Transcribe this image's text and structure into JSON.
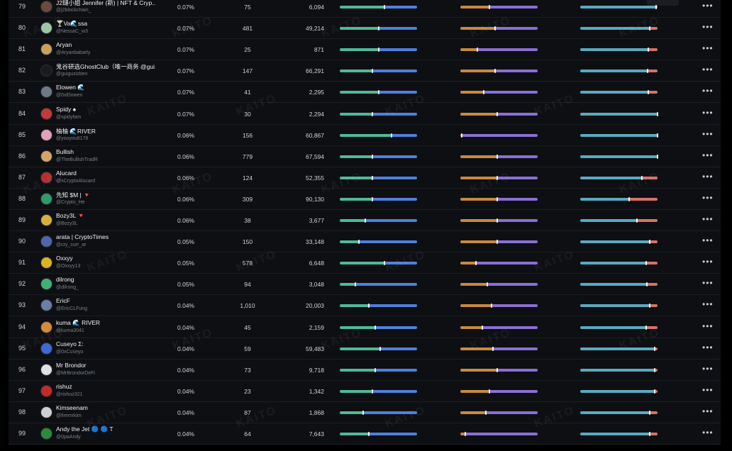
{
  "watermark": "KAITO",
  "more_label": "•••",
  "colors": {
    "green": "#4fb99a",
    "blue": "#4f7fe0",
    "orange": "#c9893c",
    "purple": "#8a6fd6",
    "teal": "#5aa9c2",
    "red": "#d9706a"
  },
  "rows": [
    {
      "rank": "79",
      "name": "J2鏈小姐 Jennifer (新) | NFT & Cryp...",
      "handle": "@j2blockchain_",
      "pct": "0.07%",
      "n1": "75",
      "n2": "6,094",
      "avatar": "#6b4b3e",
      "b1": 0.58,
      "b2": 0.38,
      "b3": 0.98
    },
    {
      "rank": "80",
      "name": "🍸Va🌊ssa",
      "handle": "@NessaC_w3",
      "pct": "0.07%",
      "n1": "481",
      "n2": "49,214",
      "avatar": "#9fc4a8",
      "b1": 0.5,
      "b2": 0.45,
      "b3": 0.9
    },
    {
      "rank": "81",
      "name": "Aryan",
      "handle": "@Aryanbabarly",
      "pct": "0.07%",
      "n1": "25",
      "n2": "871",
      "avatar": "#c9a15a",
      "b1": 0.5,
      "b2": 0.22,
      "b3": 0.88
    },
    {
      "rank": "82",
      "name": "鬼谷研选GhostClub（唯一商务 @gui...",
      "handle": "@guiguzizben",
      "pct": "0.07%",
      "n1": "147",
      "n2": "66,291",
      "avatar": "#1b1b1b",
      "b1": 0.42,
      "b2": 0.45,
      "b3": 0.87
    },
    {
      "rank": "83",
      "name": "Elowen 🌊",
      "handle": "@0xElowen",
      "pct": "0.07%",
      "n1": "41",
      "n2": "2,295",
      "avatar": "#6d7a86",
      "b1": 0.5,
      "b2": 0.3,
      "b3": 0.88
    },
    {
      "rank": "84",
      "name": "Spidy ♠",
      "handle": "@spidyfam",
      "pct": "0.07%",
      "n1": "30",
      "n2": "2,294",
      "avatar": "#c23a3a",
      "b1": 0.42,
      "b2": 0.48,
      "b3": 1.0
    },
    {
      "rank": "85",
      "name": "柚柚 🌊RIVER",
      "handle": "@youyou8178",
      "pct": "0.06%",
      "n1": "156",
      "n2": "60,867",
      "avatar": "#e3a2b6",
      "b1": 0.67,
      "b2": 0.02,
      "b3": 1.0
    },
    {
      "rank": "86",
      "name": "Bullish",
      "handle": "@TheBullishTradR",
      "pct": "0.06%",
      "n1": "779",
      "n2": "67,594",
      "avatar": "#d8a36a",
      "b1": 0.42,
      "b2": 0.48,
      "b3": 1.0
    },
    {
      "rank": "87",
      "name": "Alucard",
      "handle": "@xCryptoAlucard",
      "pct": "0.06%",
      "n1": "124",
      "n2": "52,355",
      "avatar": "#b23030",
      "b1": 0.42,
      "b2": 0.48,
      "b3": 0.8
    },
    {
      "rank": "88",
      "name": "先知 $M | 🔻",
      "handle": "@Crypto_He",
      "pct": "0.06%",
      "n1": "309",
      "n2": "90,130",
      "avatar": "#2f9a6a",
      "b1": 0.42,
      "b2": 0.48,
      "b3": 0.63
    },
    {
      "rank": "89",
      "name": "Bozy3L 🔻",
      "handle": "@Bozy3L",
      "pct": "0.06%",
      "n1": "38",
      "n2": "3,677",
      "avatar": "#d9b13a",
      "b1": 0.33,
      "b2": 0.48,
      "b3": 0.73
    },
    {
      "rank": "90",
      "name": "arata | CryptoTimes",
      "handle": "@cry_curr_ar",
      "pct": "0.05%",
      "n1": "150",
      "n2": "33,148",
      "avatar": "#5066a8",
      "b1": 0.25,
      "b2": 0.48,
      "b3": 0.9
    },
    {
      "rank": "91",
      "name": "Oxxyy",
      "handle": "@Oxxyy13",
      "pct": "0.05%",
      "n1": "578",
      "n2": "6,648",
      "avatar": "#d8b425",
      "b1": 0.58,
      "b2": 0.2,
      "b3": 0.85
    },
    {
      "rank": "92",
      "name": "dilrong",
      "handle": "@dilrong_",
      "pct": "0.05%",
      "n1": "94",
      "n2": "3,048",
      "avatar": "#3fb07a",
      "b1": 0.2,
      "b2": 0.35,
      "b3": 0.86
    },
    {
      "rank": "93",
      "name": "EricF",
      "handle": "@EricCLFung",
      "pct": "0.04%",
      "n1": "1,010",
      "n2": "20,003",
      "avatar": "#6b7fa6",
      "b1": 0.38,
      "b2": 0.4,
      "b3": 0.9
    },
    {
      "rank": "94",
      "name": "kuma 🌊 RIVER",
      "handle": "@kuma3041",
      "pct": "0.04%",
      "n1": "45",
      "n2": "2,159",
      "avatar": "#d68a3a",
      "b1": 0.46,
      "b2": 0.28,
      "b3": 0.85
    },
    {
      "rank": "95",
      "name": "Cuseyo Σ:",
      "handle": "@0xCuseyo",
      "pct": "0.04%",
      "n1": "59",
      "n2": "59,483",
      "avatar": "#3c6ad6",
      "b1": 0.52,
      "b2": 0.42,
      "b3": 0.96
    },
    {
      "rank": "96",
      "name": "Mr Brondor",
      "handle": "@MrBrondorDeFi",
      "pct": "0.04%",
      "n1": "73",
      "n2": "9,718",
      "avatar": "#e0e0e0",
      "b1": 0.46,
      "b2": 0.48,
      "b3": 0.96
    },
    {
      "rank": "97",
      "name": "rishuz",
      "handle": "@rishuz321",
      "pct": "0.04%",
      "n1": "23",
      "n2": "1,342",
      "avatar": "#c42a2a",
      "b1": 0.42,
      "b2": 0.38,
      "b3": 0.96
    },
    {
      "rank": "98",
      "name": "Kimseenam",
      "handle": "@firemrkim",
      "pct": "0.04%",
      "n1": "87",
      "n2": "1,868",
      "avatar": "#cfcfcf",
      "b1": 0.3,
      "b2": 0.33,
      "b3": 0.9
    },
    {
      "rank": "99",
      "name": "Andy the Jet 🔵 🔵 T",
      "handle": "@0paAndy",
      "pct": "0.04%",
      "n1": "64",
      "n2": "7,643",
      "avatar": "#2d8a3d",
      "b1": 0.38,
      "b2": 0.06,
      "b3": 0.9
    }
  ]
}
